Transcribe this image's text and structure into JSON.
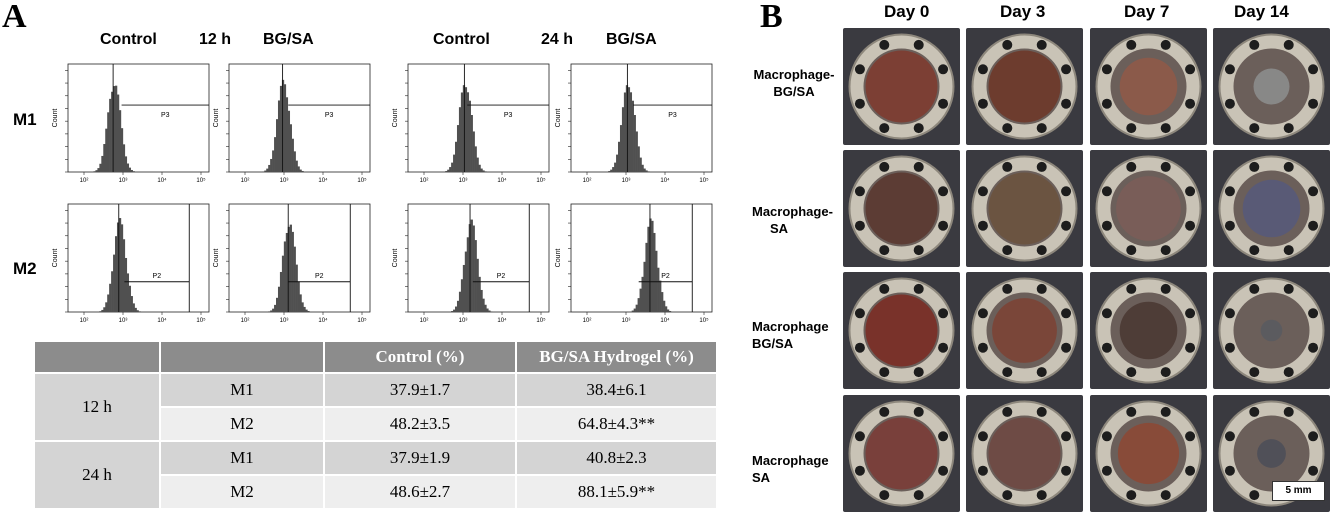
{
  "panel_a": {
    "letter": "A",
    "col_headers": {
      "control_12": "Control",
      "time_12": "12 h",
      "bgsa_12": "BG/SA",
      "control_24": "Control",
      "time_24": "24 h",
      "bgsa_24": "BG/SA"
    },
    "row_labels": [
      "M1",
      "M2"
    ],
    "gate_labels": {
      "m1": "P3",
      "m2": "P2"
    },
    "axis": {
      "ylabel": "Count",
      "xticks": [
        "10²",
        "10³",
        "10⁴",
        "10⁵"
      ]
    },
    "table": {
      "headers": [
        "",
        "",
        "Control (%)",
        "BG/SA Hydrogel (%)"
      ],
      "groups": [
        {
          "time": "12 h",
          "rows": [
            {
              "marker": "M1",
              "control": "37.9±1.7",
              "hydrogel": "38.4±6.1"
            },
            {
              "marker": "M2",
              "control": "48.2±3.5",
              "hydrogel": "64.8±4.3**"
            }
          ]
        },
        {
          "time": "24 h",
          "rows": [
            {
              "marker": "M1",
              "control": "37.9±1.9",
              "hydrogel": "40.8±2.3"
            },
            {
              "marker": "M2",
              "control": "48.6±2.7",
              "hydrogel": "88.1±5.9**"
            }
          ]
        }
      ]
    }
  },
  "panel_b": {
    "letter": "B",
    "days": [
      "Day 0",
      "Day 3",
      "Day 7",
      "Day 14"
    ],
    "groups": [
      {
        "line1": "Macrophage-",
        "line2": "BG/SA"
      },
      {
        "line1": "Macrophage-",
        "line2": "SA"
      },
      {
        "line1": "Macrophage",
        "line2": "BG/SA"
      },
      {
        "line1": "Macrophage",
        "line2": "SA"
      }
    ],
    "scale_bar": "5 mm",
    "colors": {
      "wound_day0": "#7a3a30",
      "ring": "#c9c3b6",
      "bolt": "#1d1d1d"
    }
  }
}
